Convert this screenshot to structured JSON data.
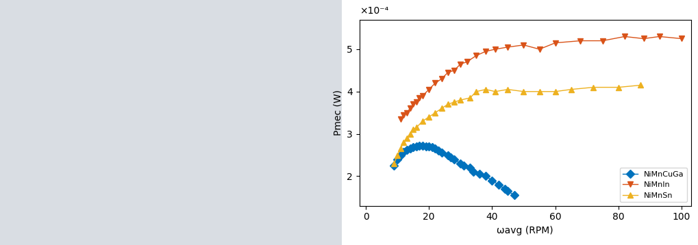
{
  "chart_data": {
    "type": "line",
    "xlabel": "ωavg (RPM)",
    "ylabel": "Pmec (W)",
    "annotations": [
      "×10⁻⁴"
    ],
    "xlim": [
      -2,
      103
    ],
    "xticks": [
      0,
      20,
      40,
      60,
      80,
      100
    ],
    "ylim": [
      0.00013,
      0.00057
    ],
    "yticks": [
      {
        "value": 0.0002,
        "label": "2"
      },
      {
        "value": 0.0003,
        "label": "3"
      },
      {
        "value": 0.0004,
        "label": "4"
      },
      {
        "value": 0.0005,
        "label": "5"
      }
    ],
    "grid": false,
    "legend": "lower right",
    "series": [
      {
        "name": "NiMnCuGa",
        "color": "#0072BD",
        "marker": "diamond",
        "line_style": "solid",
        "x": [
          9,
          10,
          11,
          12,
          13,
          14,
          15,
          16,
          17,
          18,
          19,
          20,
          21,
          22,
          23,
          24,
          26,
          27,
          28,
          30,
          31,
          33,
          34,
          36,
          38,
          40,
          42,
          44,
          45,
          47
        ],
        "values": [
          0.000225,
          0.00024,
          0.00025,
          0.000258,
          0.000262,
          0.000265,
          0.000268,
          0.00027,
          0.000272,
          0.000272,
          0.00027,
          0.00027,
          0.000268,
          0.000265,
          0.00026,
          0.000255,
          0.00025,
          0.000245,
          0.00024,
          0.00023,
          0.000225,
          0.00022,
          0.00021,
          0.000205,
          0.0002,
          0.00019,
          0.00018,
          0.00017,
          0.000165,
          0.000155
        ]
      },
      {
        "name": "NiMnIn",
        "color": "#D95319",
        "marker": "triangle_down",
        "line_style": "solid",
        "x": [
          11,
          12,
          13,
          14,
          15,
          16,
          17,
          18,
          20,
          22,
          24,
          26,
          28,
          30,
          32,
          35,
          38,
          41,
          45,
          50,
          55,
          60,
          68,
          75,
          82,
          88,
          93,
          100
        ],
        "values": [
          0.000335,
          0.000345,
          0.00035,
          0.00036,
          0.00037,
          0.000375,
          0.000385,
          0.00039,
          0.000405,
          0.00042,
          0.00043,
          0.000445,
          0.00045,
          0.000465,
          0.00047,
          0.000485,
          0.000495,
          0.0005,
          0.000505,
          0.00051,
          0.0005,
          0.000515,
          0.00052,
          0.00052,
          0.00053,
          0.000525,
          0.00053,
          0.000525
        ]
      },
      {
        "name": "NiMnSn",
        "color": "#EDB120",
        "marker": "triangle_up",
        "line_style": "solid",
        "x": [
          9,
          10,
          11,
          12,
          13,
          14,
          15,
          16,
          18,
          20,
          22,
          24,
          26,
          28,
          30,
          33,
          35,
          38,
          41,
          45,
          50,
          55,
          60,
          65,
          72,
          80,
          87
        ],
        "values": [
          0.00023,
          0.00025,
          0.000265,
          0.00028,
          0.00029,
          0.0003,
          0.00031,
          0.000315,
          0.00033,
          0.00034,
          0.00035,
          0.00036,
          0.00037,
          0.000375,
          0.00038,
          0.000385,
          0.0004,
          0.000405,
          0.0004,
          0.000405,
          0.0004,
          0.0004,
          0.0004,
          0.000405,
          0.00041,
          0.00041,
          0.000415
        ]
      }
    ]
  }
}
